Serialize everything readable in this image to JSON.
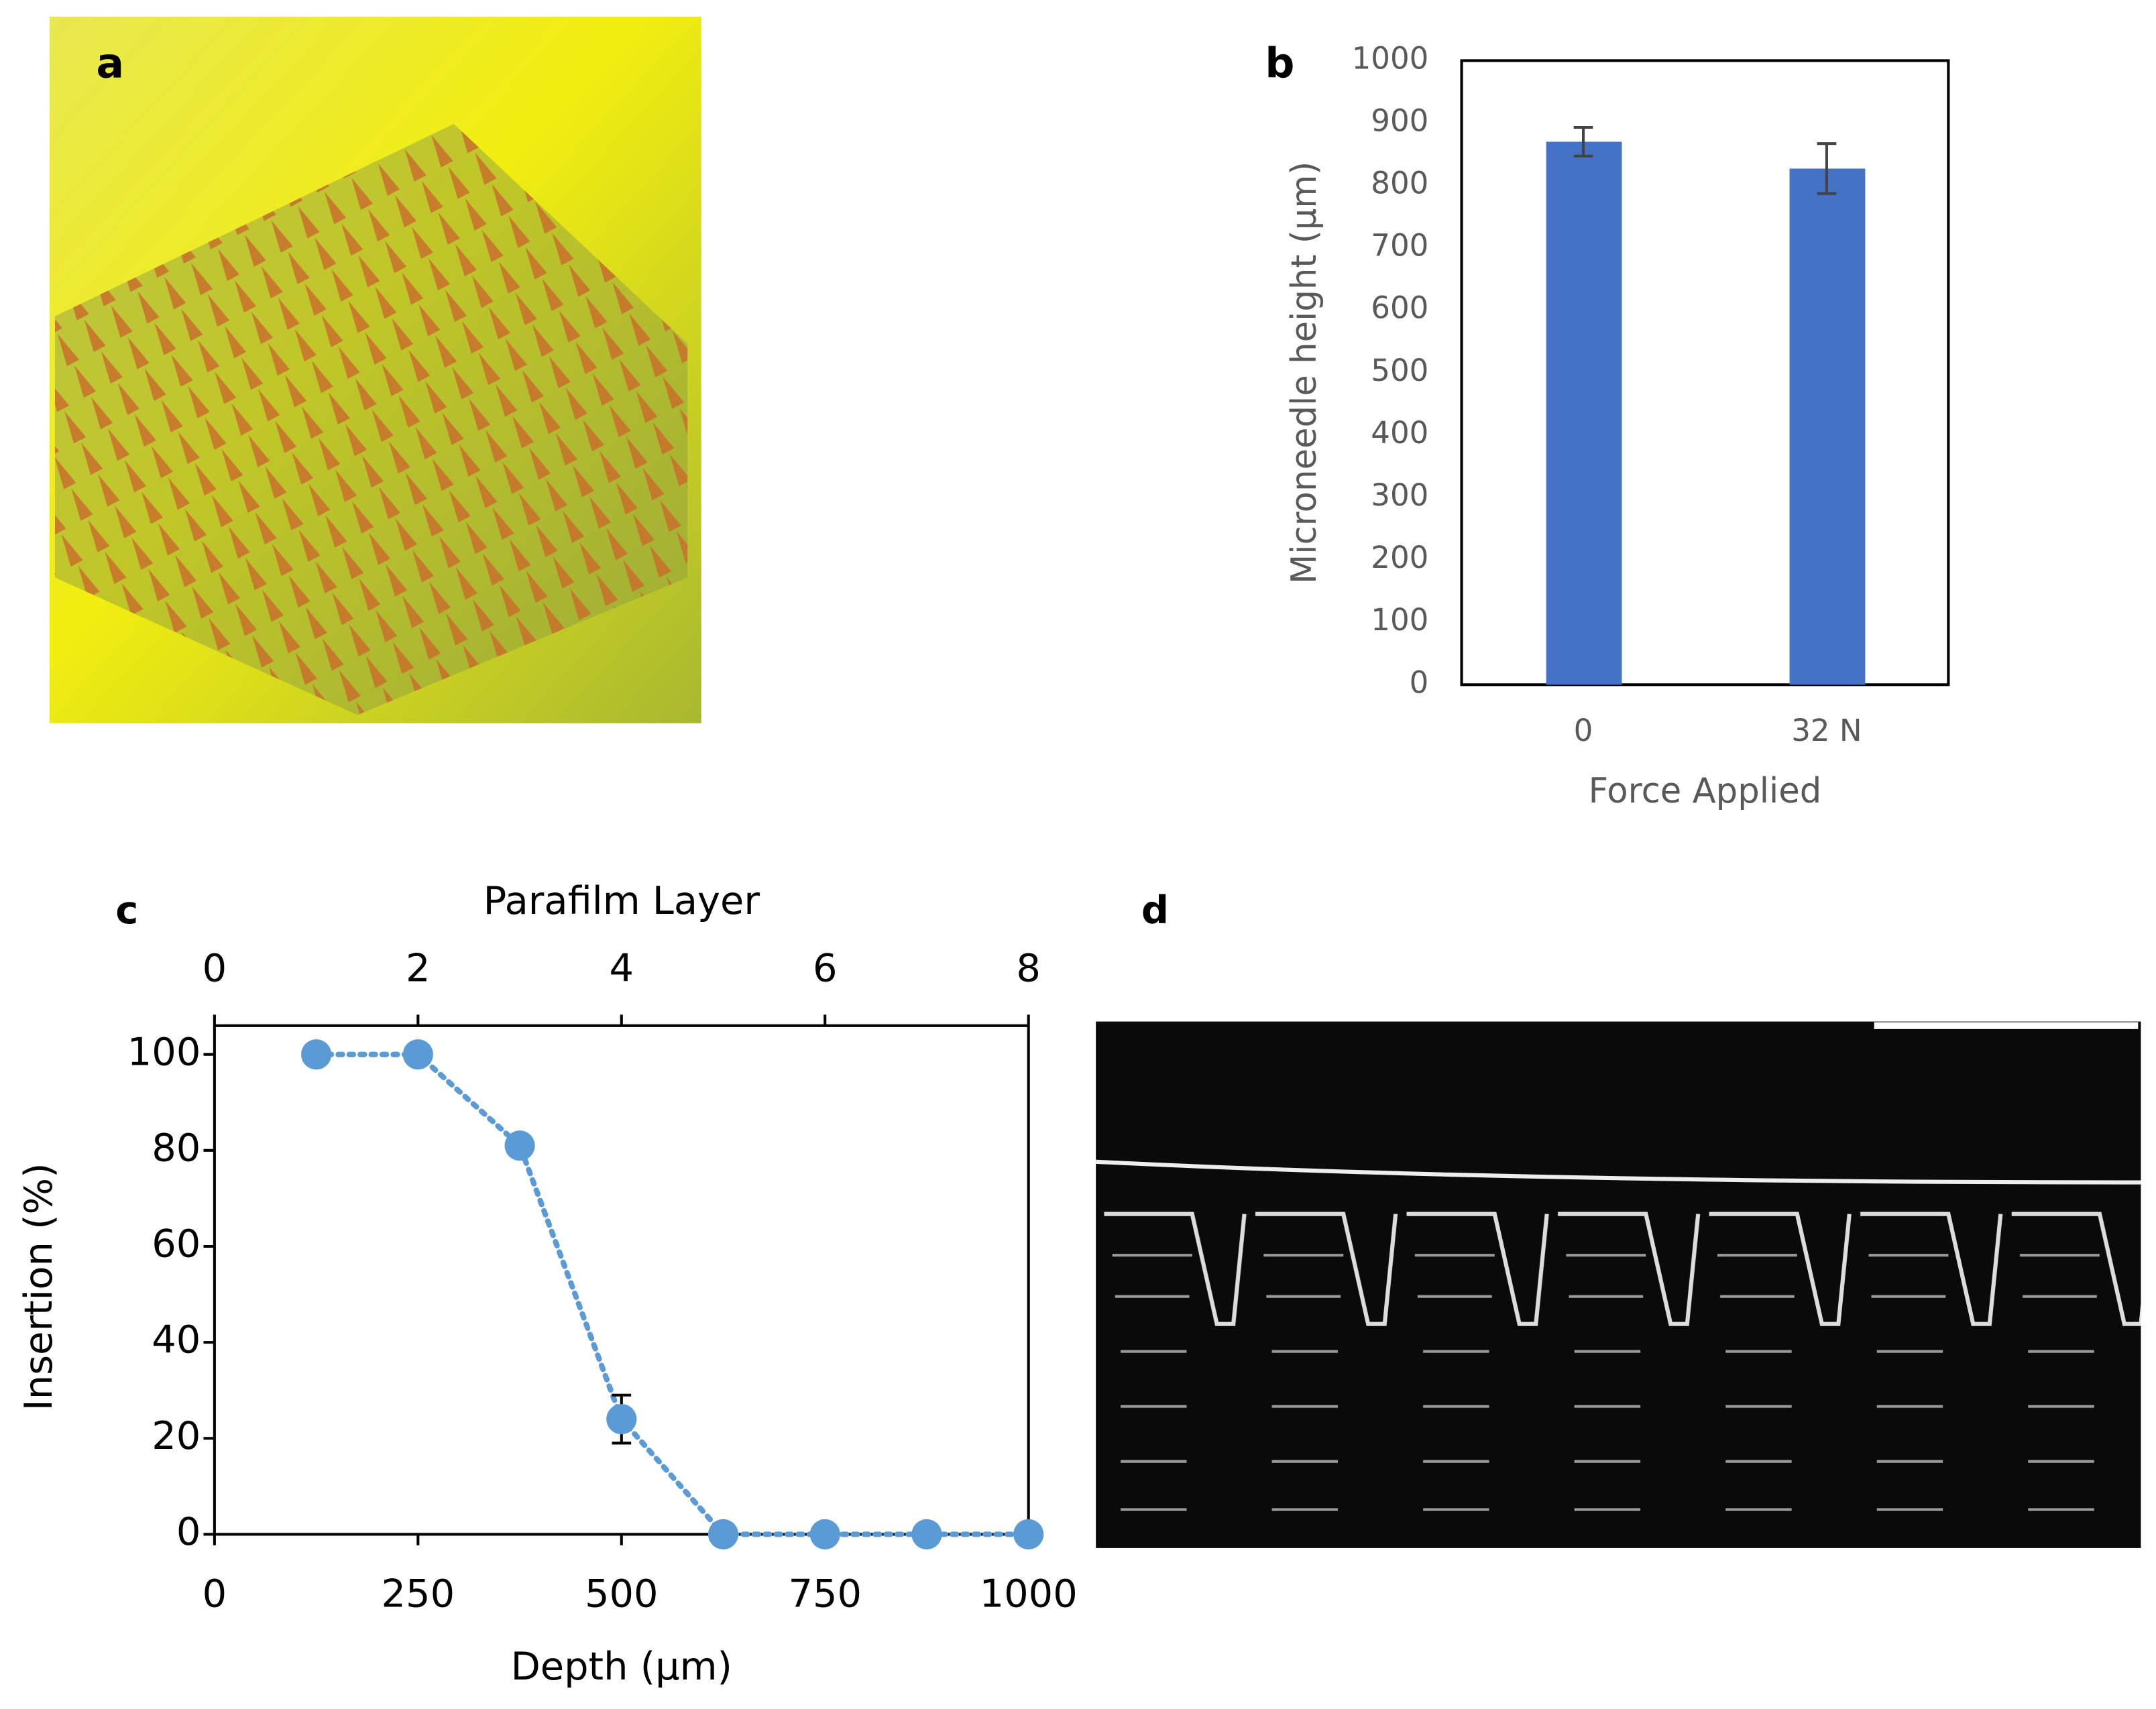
{
  "panel_labels": [
    "a",
    "b",
    "c",
    "d"
  ],
  "chart_data": [
    {
      "type": "bar",
      "categories": [
        "0",
        "32 N"
      ],
      "values": [
        870,
        827
      ],
      "errors": [
        23,
        40
      ],
      "color": "#4472c4",
      "xlabel": "Force Applied",
      "ylabel": "Microneedle height (μm)",
      "ylim": [
        0,
        1000
      ],
      "yticks": [
        0,
        100,
        200,
        300,
        400,
        500,
        600,
        700,
        800,
        900,
        1000
      ],
      "grid": false
    },
    {
      "type": "line",
      "x": [
        125,
        250,
        375,
        500,
        625,
        750,
        875,
        1000
      ],
      "values": [
        100,
        100,
        81,
        24,
        0,
        0,
        0,
        0
      ],
      "errors": [
        null,
        null,
        null,
        5,
        null,
        null,
        null,
        null
      ],
      "color": "#5b9bd5",
      "xlabel": "Depth (μm)",
      "ylabel": "Insertion (%)",
      "x2label": "Parafilm Layer",
      "xlim": [
        0,
        1000
      ],
      "xticks": [
        0,
        250,
        500,
        750,
        1000
      ],
      "x2lim": [
        0,
        8
      ],
      "x2ticks": [
        0,
        2,
        4,
        6,
        8
      ],
      "ylim": [
        0,
        106
      ],
      "yticks": [
        0,
        20,
        40,
        60,
        80,
        100
      ],
      "grid": false
    }
  ]
}
